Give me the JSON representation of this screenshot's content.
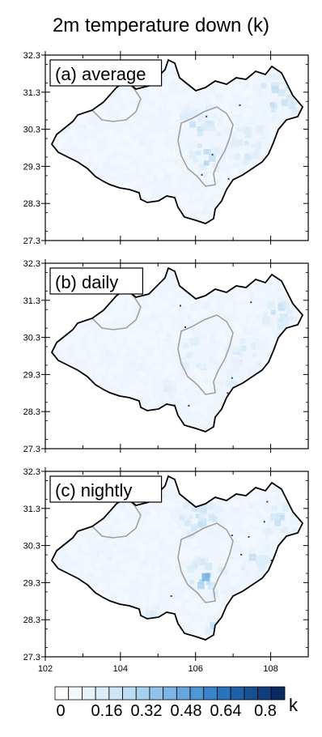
{
  "figure": {
    "title": "2m temperature down (k)",
    "unit_label": "k",
    "lat_ticks": [
      "32.3",
      "31.3",
      "30.3",
      "29.3",
      "28.3",
      "27.3"
    ],
    "lon_ticks": [
      "102",
      "104",
      "106",
      "108"
    ],
    "colorbar_labels": [
      "0",
      "0.16",
      "0.32",
      "0.48",
      "0.64",
      "0.8"
    ],
    "colorbar_colors": [
      "#ffffff",
      "#f3f8fd",
      "#e8f2fb",
      "#dcecf9",
      "#cfe5f7",
      "#bddcf3",
      "#a8d0ef",
      "#92c3ea",
      "#7bb5e4",
      "#64a6dd",
      "#4e96d4",
      "#3a85c9",
      "#2a73bb",
      "#1f61a8",
      "#174f93",
      "#103d7c",
      "#0a2c63"
    ],
    "panels": [
      {
        "id": "a",
        "label": "(a) average"
      },
      {
        "id": "b",
        "label": "(b) daily"
      },
      {
        "id": "c",
        "label": "(c) nightly"
      }
    ]
  }
}
